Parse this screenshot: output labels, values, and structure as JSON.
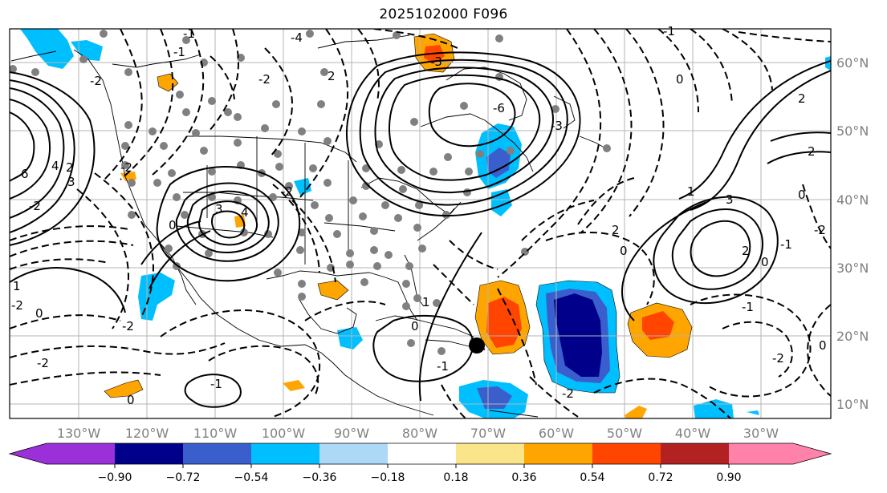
{
  "title": "2025102000 F096",
  "map": {
    "longitude_labels": [
      "130°W",
      "120°W",
      "110°W",
      "100°W",
      "90°W",
      "80°W",
      "70°W",
      "60°W",
      "50°W",
      "40°W",
      "30°W"
    ],
    "latitude_labels": [
      "60°N",
      "50°N",
      "40°N",
      "30°N",
      "20°N",
      "10°N"
    ],
    "contour_labels": [
      "-1",
      "-4",
      "-1",
      "-2",
      "-2",
      "2",
      "-3",
      "-6",
      "-3",
      "0",
      "2",
      "-1",
      "-2",
      "3",
      "2",
      "4",
      "6",
      "-2",
      "1",
      "0",
      "-2",
      "-2",
      "3",
      "-2",
      "0",
      "4",
      "3",
      "2",
      "2",
      "0",
      "-2",
      "1",
      "-1",
      "0",
      "-1",
      "-2",
      "0",
      "2",
      "1",
      "0",
      "-2",
      "-1",
      "0",
      "-1",
      "-2",
      "0"
    ]
  },
  "colorbar": {
    "tick_labels": [
      "−0.90",
      "−0.72",
      "−0.54",
      "−0.36",
      "−0.18",
      "0.18",
      "0.36",
      "0.54",
      "0.72",
      "0.90"
    ],
    "colors": [
      "#9b30d9",
      "#00008b",
      "#3a5fcd",
      "#00bfff",
      "#add8f6",
      "#ffffff",
      "#fbe58a",
      "#ffa500",
      "#ff4500",
      "#b22222",
      "#ff82ab"
    ]
  },
  "colors": {
    "very_neg": "#00008b",
    "neg2": "#3a5fcd",
    "neg1": "#00bfff",
    "pos1": "#ffa500",
    "pos2": "#ff4500",
    "dots": "#808080",
    "grid": "#b4b4b4"
  }
}
